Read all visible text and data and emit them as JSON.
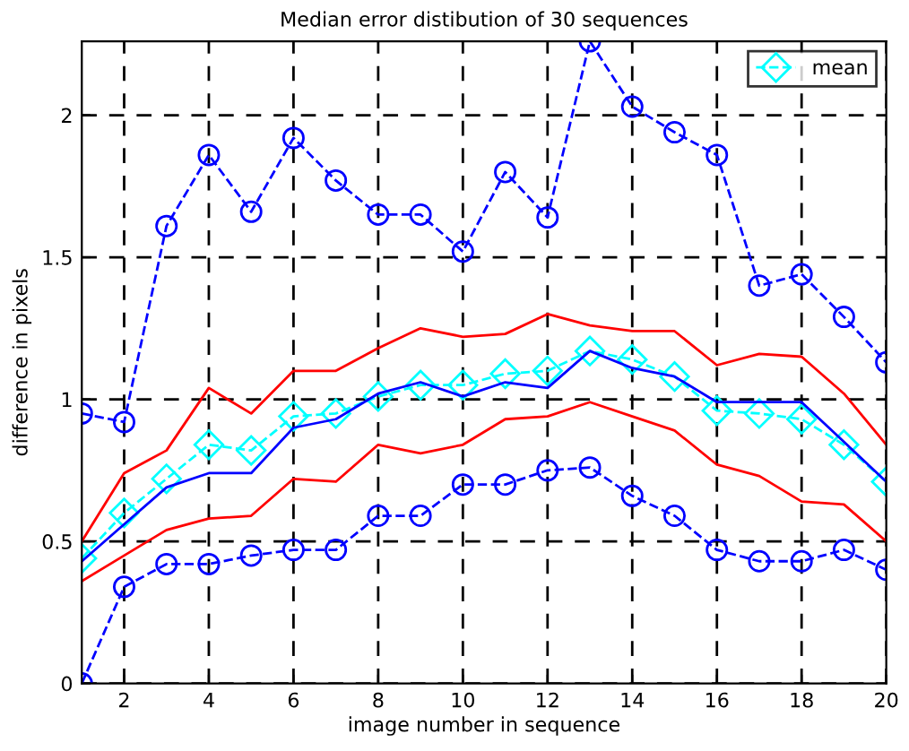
{
  "chart_data": {
    "type": "line",
    "title": "Median error distibution of 30 sequences",
    "xlabel": "image number in sequence",
    "ylabel": "difference in pixels",
    "x": [
      1,
      2,
      3,
      4,
      5,
      6,
      7,
      8,
      9,
      10,
      11,
      12,
      13,
      14,
      15,
      16,
      17,
      18,
      19,
      20
    ],
    "series": [
      {
        "color": "#0000ff",
        "marker": "circle",
        "line_style": "dashed",
        "values": [
          0.95,
          0.92,
          1.61,
          1.86,
          1.66,
          1.92,
          1.77,
          1.65,
          1.65,
          1.52,
          1.8,
          1.64,
          2.26,
          2.03,
          1.94,
          1.86,
          1.4,
          1.44,
          1.29,
          1.13
        ]
      },
      {
        "color": "#ff0000",
        "marker": "none",
        "line_style": "solid",
        "values": [
          0.5,
          0.74,
          0.82,
          1.04,
          0.95,
          1.1,
          1.1,
          1.18,
          1.25,
          1.22,
          1.23,
          1.3,
          1.26,
          1.24,
          1.24,
          1.12,
          1.16,
          1.15,
          1.02,
          0.84
        ]
      },
      {
        "name": "mean",
        "color": "#00ffff",
        "marker": "diamond",
        "line_style": "dashed",
        "values": [
          0.44,
          0.6,
          0.72,
          0.84,
          0.82,
          0.94,
          0.95,
          1.01,
          1.05,
          1.05,
          1.09,
          1.1,
          1.17,
          1.14,
          1.08,
          0.96,
          0.95,
          0.93,
          0.84,
          0.71
        ]
      },
      {
        "color": "#0000ff",
        "marker": "none",
        "line_style": "solid",
        "values": [
          0.43,
          0.56,
          0.69,
          0.74,
          0.74,
          0.9,
          0.93,
          1.02,
          1.06,
          1.01,
          1.06,
          1.04,
          1.17,
          1.11,
          1.08,
          0.99,
          0.99,
          0.99,
          0.85,
          0.71
        ]
      },
      {
        "color": "#ff0000",
        "marker": "none",
        "line_style": "solid",
        "values": [
          0.36,
          0.45,
          0.54,
          0.58,
          0.59,
          0.72,
          0.71,
          0.84,
          0.81,
          0.84,
          0.93,
          0.94,
          0.99,
          0.94,
          0.89,
          0.77,
          0.73,
          0.64,
          0.63,
          0.5
        ]
      },
      {
        "color": "#0000ff",
        "marker": "circle",
        "line_style": "dashed",
        "values": [
          0.0,
          0.34,
          0.42,
          0.42,
          0.45,
          0.47,
          0.47,
          0.59,
          0.59,
          0.7,
          0.7,
          0.75,
          0.76,
          0.66,
          0.59,
          0.47,
          0.43,
          0.43,
          0.47,
          0.4
        ]
      }
    ],
    "xlim": [
      1,
      20
    ],
    "ylim": [
      0,
      2.26
    ],
    "xticks": [
      2,
      4,
      6,
      8,
      10,
      12,
      14,
      16,
      18,
      20
    ],
    "yticks": [
      0,
      0.5,
      1,
      1.5,
      2
    ],
    "grid": true,
    "legend": "top right"
  }
}
